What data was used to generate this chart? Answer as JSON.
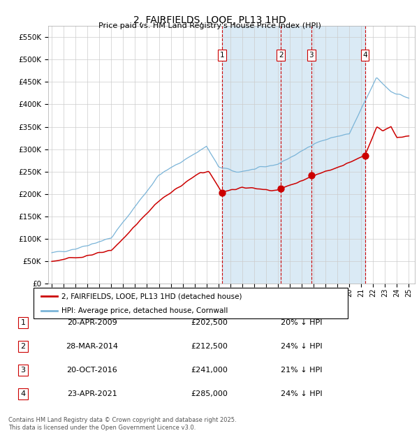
{
  "title": "2, FAIRFIELDS, LOOE, PL13 1HD",
  "subtitle": "Price paid vs. HM Land Registry's House Price Index (HPI)",
  "ylim": [
    0,
    575000
  ],
  "yticks": [
    0,
    50000,
    100000,
    150000,
    200000,
    250000,
    300000,
    350000,
    400000,
    450000,
    500000,
    550000
  ],
  "ytick_labels": [
    "£0",
    "£50K",
    "£100K",
    "£150K",
    "£200K",
    "£250K",
    "£300K",
    "£350K",
    "£400K",
    "£450K",
    "£500K",
    "£550K"
  ],
  "hpi_color": "#7ab4d8",
  "hpi_fill_color": "#daeaf5",
  "price_color": "#cc0000",
  "bg_color": "#ffffff",
  "grid_color": "#cccccc",
  "vline_color": "#cc0000",
  "transactions": [
    {
      "date": "2009-04-20",
      "price": 202500,
      "label": "1",
      "x": 2009.3
    },
    {
      "date": "2014-03-28",
      "price": 212500,
      "label": "2",
      "x": 2014.24
    },
    {
      "date": "2016-10-20",
      "price": 241000,
      "label": "3",
      "x": 2016.8
    },
    {
      "date": "2021-04-23",
      "price": 285000,
      "label": "4",
      "x": 2021.31
    }
  ],
  "table_rows": [
    {
      "num": "1",
      "date": "20-APR-2009",
      "price": "£202,500",
      "hpi": "20% ↓ HPI"
    },
    {
      "num": "2",
      "date": "28-MAR-2014",
      "price": "£212,500",
      "hpi": "24% ↓ HPI"
    },
    {
      "num": "3",
      "date": "20-OCT-2016",
      "price": "£241,000",
      "hpi": "21% ↓ HPI"
    },
    {
      "num": "4",
      "date": "23-APR-2021",
      "price": "£285,000",
      "hpi": "24% ↓ HPI"
    }
  ],
  "footnote": "Contains HM Land Registry data © Crown copyright and database right 2025.\nThis data is licensed under the Open Government Licence v3.0.",
  "legend_price_label": "2, FAIRFIELDS, LOOE, PL13 1HD (detached house)",
  "legend_hpi_label": "HPI: Average price, detached house, Cornwall"
}
